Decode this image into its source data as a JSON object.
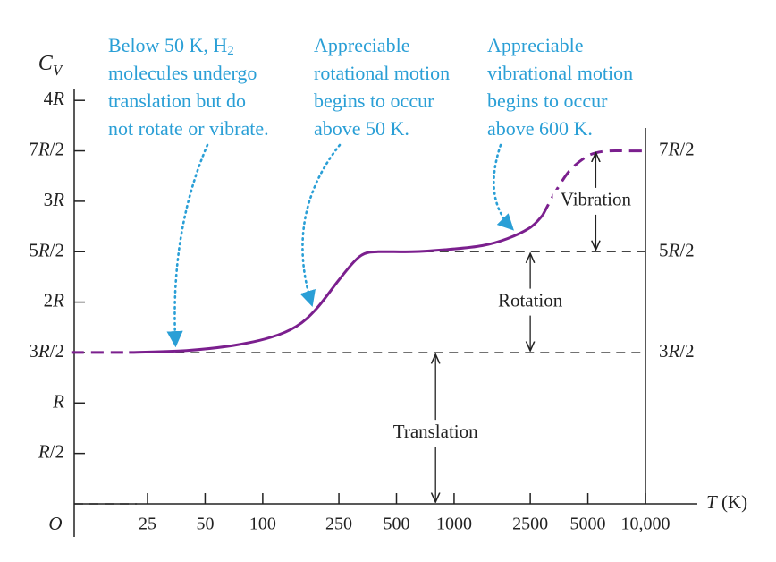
{
  "chart_data": {
    "type": "line",
    "ylabel": "C_V",
    "xlabel": "T (K)",
    "origin_label": "O",
    "x_scale": "log",
    "x_ticks": [
      {
        "value": 25,
        "label": "25"
      },
      {
        "value": 50,
        "label": "50"
      },
      {
        "value": 100,
        "label": "100"
      },
      {
        "value": 250,
        "label": "250"
      },
      {
        "value": 500,
        "label": "500"
      },
      {
        "value": 1000,
        "label": "1000"
      },
      {
        "value": 2500,
        "label": "2500"
      },
      {
        "value": 5000,
        "label": "5000"
      },
      {
        "value": 10000,
        "label": "10,000"
      }
    ],
    "y_unit": "R",
    "y_ticks": [
      {
        "value": 0.5,
        "label": "R/2"
      },
      {
        "value": 1.0,
        "label": "R"
      },
      {
        "value": 1.5,
        "label": "3R/2"
      },
      {
        "value": 2.0,
        "label": "2R"
      },
      {
        "value": 2.5,
        "label": "5R/2"
      },
      {
        "value": 3.0,
        "label": "3R"
      },
      {
        "value": 3.5,
        "label": "7R/2"
      },
      {
        "value": 4.0,
        "label": "4R"
      }
    ],
    "right_labels": [
      {
        "value": 3.5,
        "label": "7R/2"
      },
      {
        "value": 2.5,
        "label": "5R/2"
      },
      {
        "value": 1.5,
        "label": "3R/2"
      }
    ],
    "series": [
      {
        "color": "#7b1f8e",
        "segments": [
          {
            "style": "dashed",
            "x": [
              10,
              15,
              20
            ],
            "y": [
              1.5,
              1.5,
              1.5
            ]
          },
          {
            "style": "solid",
            "x": [
              20,
              40,
              70,
              110,
              150,
              190,
              250,
              300,
              340,
              400,
              600,
              900,
              1400,
              1900,
              2500,
              2900
            ],
            "y": [
              1.5,
              1.52,
              1.57,
              1.65,
              1.76,
              1.93,
              2.22,
              2.4,
              2.48,
              2.5,
              2.5,
              2.52,
              2.56,
              2.63,
              2.74,
              2.86
            ]
          },
          {
            "style": "dashed",
            "x": [
              2900,
              3400,
              4000,
              4800,
              5500,
              6500,
              8000,
              10000
            ],
            "y": [
              2.86,
              3.1,
              3.3,
              3.43,
              3.48,
              3.5,
              3.5,
              3.5
            ]
          }
        ]
      }
    ],
    "reference_lines": [
      {
        "value": 1.5,
        "from": 35,
        "to": 10000
      },
      {
        "value": 2.5,
        "from": 700,
        "to": 10000
      }
    ],
    "baseline_dashed": {
      "from": 10,
      "to": 22
    },
    "bands": [
      {
        "label": "Translation",
        "x": 800,
        "from": 0,
        "to": 1.5,
        "label_y": 0.7
      },
      {
        "label": "Rotation",
        "x": 2500,
        "from": 1.5,
        "to": 2.5,
        "label_y": 2.0
      },
      {
        "label": "Vibration",
        "x": 5500,
        "from": 2.5,
        "to": 3.5,
        "label_y": 3.0
      }
    ],
    "annotations": [
      {
        "lines": [
          "Below 50 K, H₂",
          "molecules undergo",
          "translation but do",
          "not rotate or vibrate."
        ],
        "target_x": 35,
        "target_y": 1.53
      },
      {
        "lines": [
          "Appreciable",
          "rotational motion",
          "begins to occur",
          "above 50 K."
        ],
        "target_x": 180,
        "target_y": 1.93
      },
      {
        "lines": [
          "Appreciable",
          "vibrational motion",
          "begins to occur",
          "above 600 K."
        ],
        "target_x": 2000,
        "target_y": 2.68
      }
    ],
    "colors": {
      "curve": "#7b1f8e",
      "annotation": "#2a9fd6",
      "axis": "#222222",
      "guide": "#444444"
    }
  }
}
